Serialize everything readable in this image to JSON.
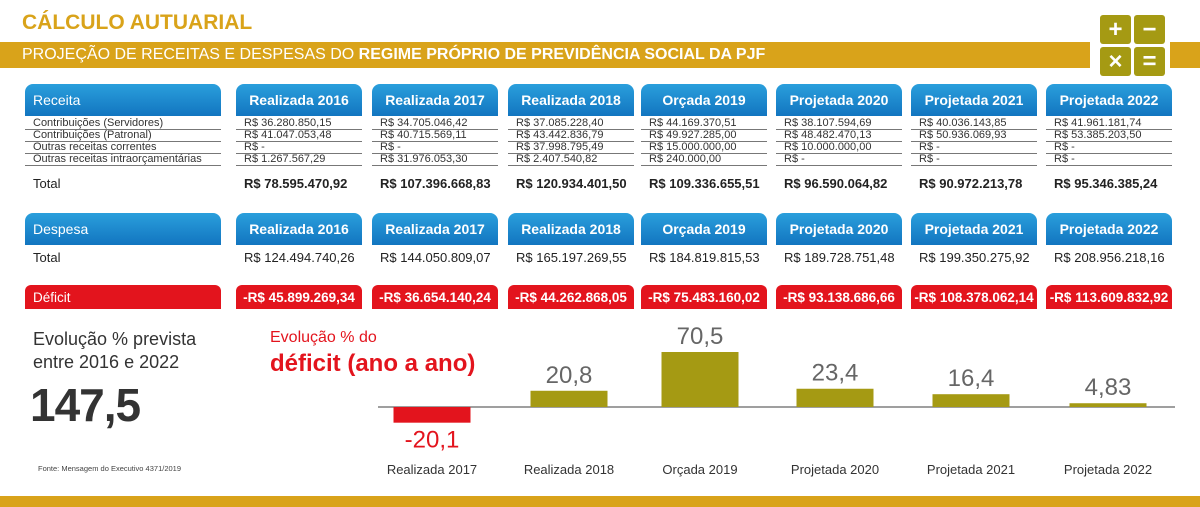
{
  "header": {
    "title": "CÁLCULO AUTUARIAL",
    "subtitle_plain": "PROJEÇÃO DE RECEITAS E DESPESAS DO ",
    "subtitle_bold": "REGIME PRÓPRIO DE PREVIDÊNCIA SOCIAL DA PJF",
    "calc_icons": [
      "+",
      "−",
      "×",
      "="
    ]
  },
  "columns": [
    "Realizada 2016",
    "Realizada 2017",
    "Realizada 2018",
    "Orçada 2019",
    "Projetada 2020",
    "Projetada 2021",
    "Projetada 2022"
  ],
  "receita": {
    "header": "Receita",
    "rows": [
      {
        "label": "Contribuições (Servidores)",
        "values": [
          "R$ 36.280.850,15",
          "R$ 34.705.046,42",
          "R$ 37.085.228,40",
          "R$ 44.169.370,51",
          "R$ 38.107.594,69",
          "R$ 40.036.143,85",
          "R$ 41.961.181,74"
        ]
      },
      {
        "label": "Contribuições (Patronal)",
        "values": [
          "R$ 41.047.053,48",
          "R$ 40.715.569,11",
          "R$ 43.442.836,79",
          "R$ 49.927.285,00",
          "R$ 48.482.470,13",
          "R$ 50.936.069,93",
          "R$ 53.385.203,50"
        ]
      },
      {
        "label": "Outras receitas correntes",
        "values": [
          "R$ -",
          "R$ -",
          "R$ 37.998.795,49",
          "R$ 15.000.000,00",
          "R$ 10.000.000,00",
          "R$ -",
          "R$ -"
        ]
      },
      {
        "label": "Outras receitas intraorçamentárias",
        "values": [
          "R$ 1.267.567,29",
          "R$ 31.976.053,30",
          "R$ 2.407.540,82",
          "R$ 240.000,00",
          "R$ -",
          "R$ -",
          "R$ -"
        ]
      }
    ],
    "total_label": "Total",
    "totals": [
      "R$ 78.595.470,92",
      "R$ 107.396.668,83",
      "R$ 120.934.401,50",
      "R$ 109.336.655,51",
      "R$ 96.590.064,82",
      "R$ 90.972.213,78",
      "R$ 95.346.385,24"
    ]
  },
  "despesa": {
    "header": "Despesa",
    "total_label": "Total",
    "totals": [
      "R$ 124.494.740,26",
      "R$ 144.050.809,07",
      "R$ 165.197.269,55",
      "R$ 184.819.815,53",
      "R$ 189.728.751,48",
      "R$ 199.350.275,92",
      "R$ 208.956.218,16"
    ]
  },
  "deficit": {
    "label": "Déficit",
    "values": [
      "-R$ 45.899.269,34",
      "-R$ 36.654.140,24",
      "-R$ 44.262.868,05",
      "-R$ 75.483.160,02",
      "-R$ 93.138.686,66",
      "-R$ 108.378.062,14",
      "-R$ 113.609.832,92"
    ]
  },
  "evolucao": {
    "label_line1": "Evolução % prevista",
    "label_line2": "entre 2016 e 2022",
    "value": "147,5"
  },
  "deficit_chart_label": {
    "line1": "Evolução % do",
    "line2": "déficit (ano a ano)"
  },
  "source": "Fonte: Mensagem do Executivo 4371/2019",
  "colors": {
    "gold": "#d9a31a",
    "olive": "#a59a13",
    "red": "#e3141d",
    "blue": "#1a86cc"
  },
  "chart_data": {
    "type": "bar",
    "categories": [
      "Realizada 2017",
      "Realizada 2018",
      "Orçada 2019",
      "Projetada 2020",
      "Projetada 2021",
      "Projetada 2022"
    ],
    "values": [
      -20.1,
      20.8,
      70.5,
      23.4,
      16.4,
      4.83
    ],
    "value_labels": [
      "-20,1",
      "20,8",
      "70,5",
      "23,4",
      "16,4",
      "4,83"
    ],
    "title": "Evolução % do déficit (ano a ano)",
    "grid": false
  }
}
